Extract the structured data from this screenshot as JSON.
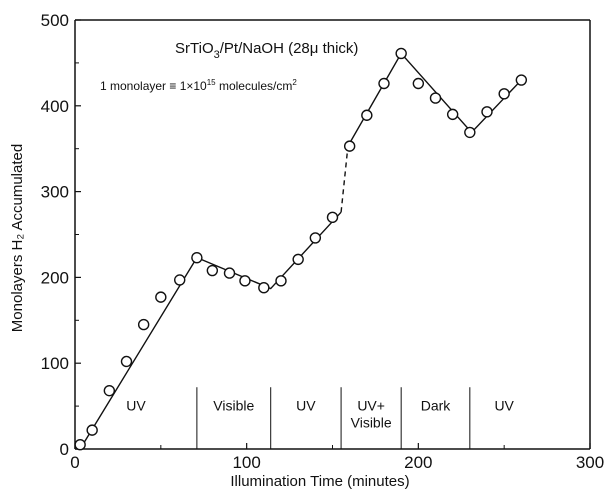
{
  "chart_data": {
    "type": "scatter",
    "xlabel": "Illumination Time (minutes)",
    "ylabel": "Monolayers H₂ Accumulated",
    "xlim": [
      0,
      300
    ],
    "ylim": [
      0,
      500
    ],
    "x_ticks": [
      "0",
      "100",
      "200",
      "300"
    ],
    "y_ticks": [
      "0",
      "100",
      "200",
      "300",
      "400",
      "500"
    ],
    "x_tick_values": [
      0,
      100,
      200,
      300
    ],
    "y_tick_values": [
      0,
      100,
      200,
      300,
      400,
      500
    ],
    "annotations": {
      "system_base": "SrTiO",
      "system_sub": "3",
      "system_rest": "/Pt/NaOH  (28μ thick)",
      "monolayer_base": "1 monolayer ≡ 1×10",
      "monolayer_exp1": "15",
      "monolayer_mid": " molecules/cm",
      "monolayer_exp2": "2"
    },
    "periods": [
      {
        "label": "UV",
        "start": 0,
        "end": 71
      },
      {
        "label": "Visible",
        "start": 71,
        "end": 114
      },
      {
        "label": "UV",
        "start": 114,
        "end": 155
      },
      {
        "label": "UV+",
        "label2": "Visible",
        "start": 155,
        "end": 190
      },
      {
        "label": "Dark",
        "start": 190,
        "end": 230
      },
      {
        "label": "UV",
        "start": 230,
        "end": 270
      }
    ],
    "series": [
      {
        "x": [
          3,
          10,
          20,
          30,
          40,
          50,
          61,
          71,
          80,
          90,
          99,
          110,
          120,
          130,
          140,
          150,
          160,
          170,
          180,
          190,
          200,
          210,
          220,
          230,
          240,
          250,
          260
        ],
        "y": [
          5,
          22,
          68,
          102,
          145,
          177,
          197,
          223,
          208,
          205,
          196,
          188,
          196,
          221,
          246,
          270,
          353,
          389,
          426,
          461,
          426,
          409,
          390,
          369,
          393,
          414,
          430
        ]
      }
    ],
    "fit_lines": [
      {
        "style": "solid",
        "points": [
          [
            3,
            0
          ],
          [
            71,
            223
          ],
          [
            114,
            187
          ],
          [
            155,
            276
          ]
        ]
      },
      {
        "style": "dashed",
        "points": [
          [
            155,
            276
          ],
          [
            159,
            353
          ]
        ]
      },
      {
        "style": "solid",
        "points": [
          [
            159,
            353
          ],
          [
            190,
            461
          ],
          [
            231,
            369
          ],
          [
            260,
            430
          ]
        ]
      }
    ]
  }
}
